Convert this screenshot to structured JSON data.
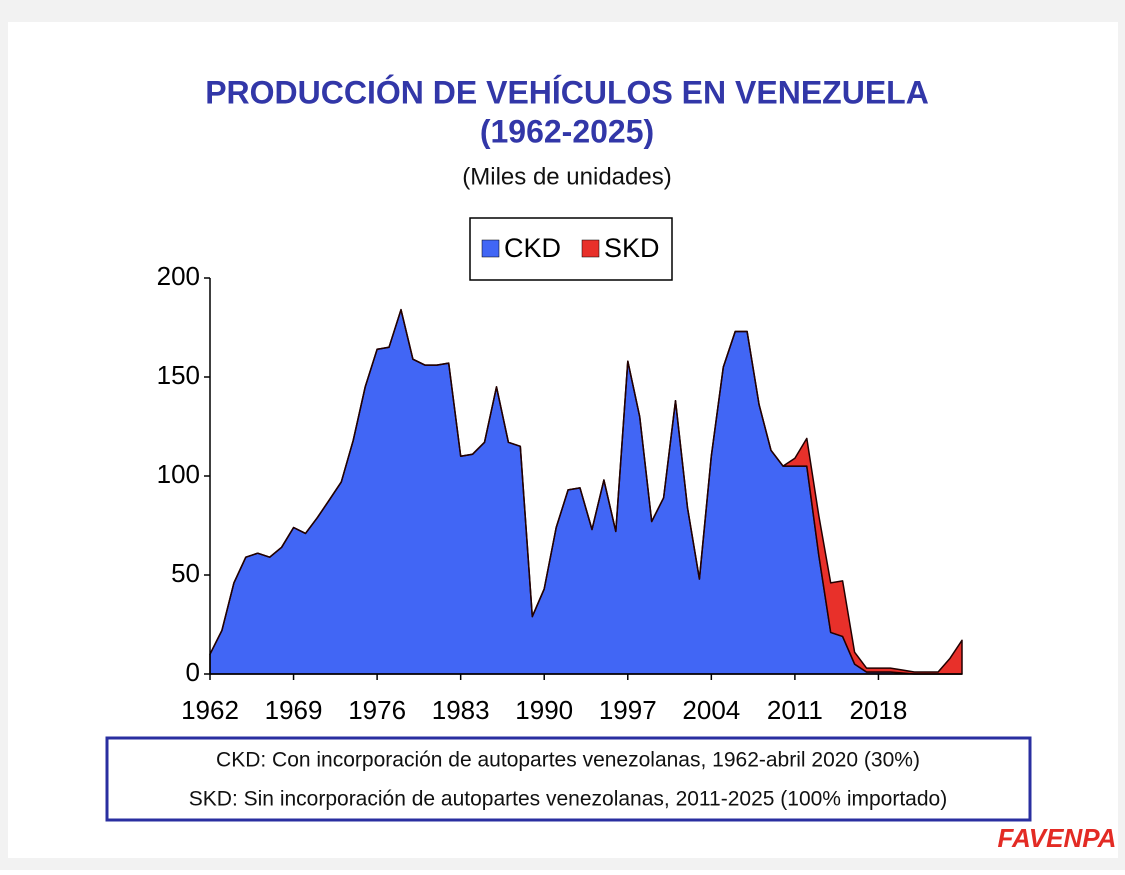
{
  "chart_data": {
    "type": "stacked_area",
    "title_lines": [
      "PRODUCCIÓN DE VEHÍCULOS EN VENEZUELA",
      "(1962-2025)"
    ],
    "subtitle": "(Miles de unidades)",
    "x": [
      1962,
      1963,
      1964,
      1965,
      1966,
      1967,
      1968,
      1969,
      1970,
      1971,
      1972,
      1973,
      1974,
      1975,
      1976,
      1977,
      1978,
      1979,
      1980,
      1981,
      1982,
      1983,
      1984,
      1985,
      1986,
      1987,
      1988,
      1989,
      1990,
      1991,
      1992,
      1993,
      1994,
      1995,
      1996,
      1997,
      1998,
      1999,
      2000,
      2001,
      2002,
      2003,
      2004,
      2005,
      2006,
      2007,
      2008,
      2009,
      2010,
      2011,
      2012,
      2013,
      2014,
      2015,
      2016,
      2017,
      2018,
      2019,
      2020,
      2021,
      2022,
      2023,
      2024,
      2025
    ],
    "series": [
      {
        "name": "CKD",
        "color": "#4166f5",
        "values": [
          10,
          22,
          46,
          59,
          61,
          59,
          64,
          74,
          71,
          79,
          88,
          97,
          118,
          145,
          164,
          165,
          184,
          159,
          156,
          156,
          157,
          110,
          111,
          117,
          145,
          117,
          115,
          29,
          43,
          74,
          93,
          94,
          73,
          98,
          72,
          158,
          130,
          77,
          89,
          138,
          84,
          48,
          110,
          155,
          173,
          173,
          136,
          113,
          105,
          105,
          105,
          60,
          21,
          19,
          5,
          1,
          1,
          1,
          0.5,
          0,
          0,
          0,
          0,
          0
        ]
      },
      {
        "name": "SKD",
        "color": "#e8302a",
        "values": [
          0,
          0,
          0,
          0,
          0,
          0,
          0,
          0,
          0,
          0,
          0,
          0,
          0,
          0,
          0,
          0,
          0,
          0,
          0,
          0,
          0,
          0,
          0,
          0,
          0,
          0,
          0,
          0,
          0,
          0,
          0,
          0,
          0,
          0,
          0,
          0,
          0,
          0,
          0,
          0,
          0,
          0,
          0,
          0,
          0,
          0,
          0,
          0,
          0,
          4,
          14,
          20,
          25,
          28,
          6,
          2,
          2,
          2,
          1.5,
          1,
          1,
          1,
          8,
          17
        ]
      }
    ],
    "xlim": [
      1962,
      2025
    ],
    "xticks": [
      1962,
      1969,
      1976,
      1983,
      1990,
      1997,
      2004,
      2011,
      2018
    ],
    "ylim": [
      0,
      200
    ],
    "yticks": [
      0,
      50,
      100,
      150,
      200
    ],
    "notes": [
      "CKD: Con incorporación de autopartes venezolanas, 1962-abril 2020 (30%)",
      "SKD: Sin incorporación de autopartes venezolanas, 2011-2025 (100% importado)"
    ],
    "logo": "FAVENPA"
  }
}
